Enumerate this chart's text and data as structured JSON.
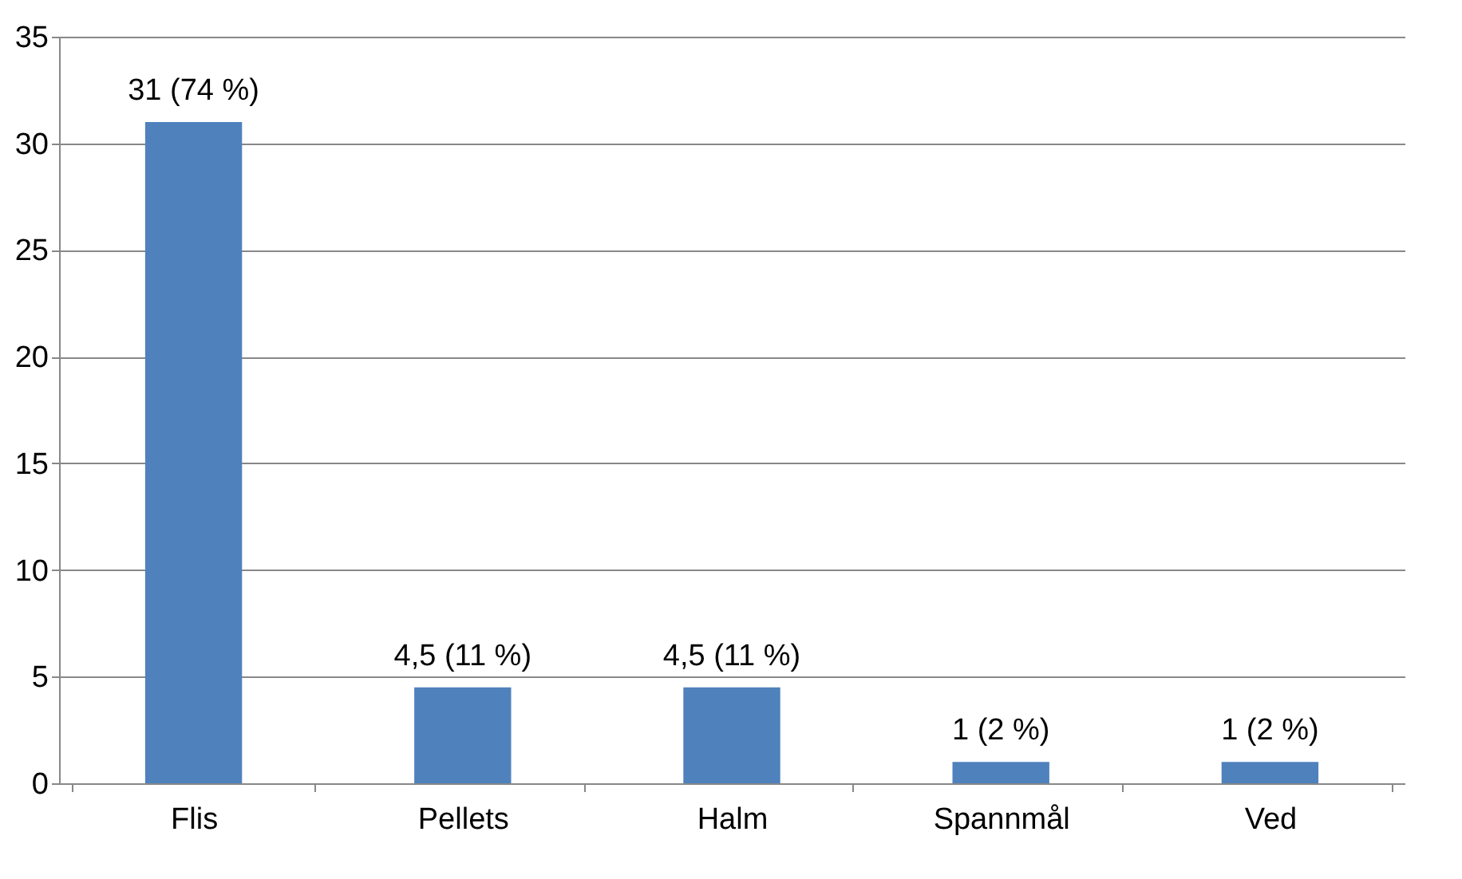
{
  "chart_data": {
    "type": "bar",
    "categories": [
      "Flis",
      "Pellets",
      "Halm",
      "Spannmål",
      "Ved"
    ],
    "values": [
      31,
      4.5,
      4.5,
      1,
      1
    ],
    "value_labels": [
      "31 (74 %)",
      "4,5 (11 %)",
      "4,5 (11 %)",
      "1 (2 %)",
      "1 (2 %)"
    ],
    "color": "#4f81bd",
    "ylim": [
      0,
      35
    ],
    "yticks": [
      0,
      5,
      10,
      15,
      20,
      25,
      30,
      35
    ],
    "grid": "y"
  }
}
